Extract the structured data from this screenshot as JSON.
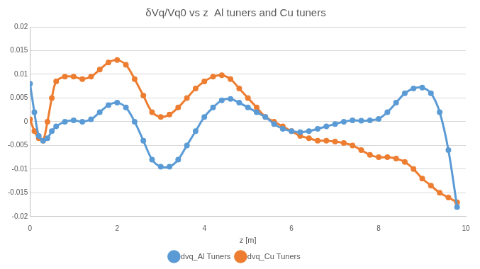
{
  "chart_data": {
    "type": "line",
    "title": "δVq/Vq0 vs z  Al tuners and Cu tuners",
    "x_label": "z [m]",
    "xlim": [
      0,
      10
    ],
    "xticks": [
      0,
      2,
      4,
      6,
      8,
      10
    ],
    "ylim": [
      -0.02,
      0.02
    ],
    "yticks": [
      -0.02,
      -0.015,
      -0.01,
      -0.005,
      0,
      0.005,
      0.01,
      0.015,
      0.02
    ],
    "grid": true,
    "legend": "bottom",
    "x": [
      0,
      0.1,
      0.2,
      0.3,
      0.4,
      0.5,
      0.6,
      0.8,
      1.0,
      1.2,
      1.4,
      1.6,
      1.8,
      2.0,
      2.2,
      2.4,
      2.6,
      2.8,
      3.0,
      3.2,
      3.4,
      3.6,
      3.8,
      4.0,
      4.2,
      4.4,
      4.6,
      4.8,
      5.0,
      5.2,
      5.4,
      5.6,
      5.8,
      6.0,
      6.2,
      6.4,
      6.6,
      6.8,
      7.0,
      7.2,
      7.4,
      7.6,
      7.8,
      8.0,
      8.2,
      8.4,
      8.6,
      8.8,
      9.0,
      9.2,
      9.4,
      9.6,
      9.8
    ],
    "series": [
      {
        "name": "dvq_Al Tuners",
        "color": "#5b9bd5",
        "marker": "circle",
        "line_style": "solid",
        "values": [
          0.008,
          0.002,
          -0.003,
          -0.004,
          -0.0035,
          -0.002,
          -0.001,
          0.0,
          0.0003,
          0.0,
          0.0005,
          0.002,
          0.0035,
          0.004,
          0.003,
          0.0,
          -0.004,
          -0.008,
          -0.0095,
          -0.0095,
          -0.008,
          -0.005,
          -0.002,
          0.001,
          0.003,
          0.0045,
          0.0048,
          0.004,
          0.003,
          0.002,
          0.001,
          -0.0005,
          -0.0015,
          -0.002,
          -0.0022,
          -0.002,
          -0.0015,
          -0.001,
          -0.0005,
          0.0,
          0.0003,
          0.0002,
          0.0003,
          0.0006,
          0.002,
          0.004,
          0.006,
          0.007,
          0.0072,
          0.006,
          0.002,
          -0.006,
          -0.018
        ]
      },
      {
        "name": "dvq_Cu Tuners",
        "color": "#ed7d31",
        "marker": "circle",
        "line_style": "solid",
        "values": [
          0.0005,
          -0.002,
          -0.0035,
          -0.004,
          0.0,
          0.005,
          0.0085,
          0.0095,
          0.0095,
          0.009,
          0.0095,
          0.011,
          0.0125,
          0.013,
          0.012,
          0.009,
          0.0055,
          0.002,
          0.001,
          0.0015,
          0.003,
          0.005,
          0.007,
          0.0085,
          0.0095,
          0.0098,
          0.009,
          0.007,
          0.005,
          0.003,
          0.001,
          0.0,
          -0.001,
          -0.002,
          -0.003,
          -0.0035,
          -0.004,
          -0.004,
          -0.0042,
          -0.0045,
          -0.005,
          -0.006,
          -0.007,
          -0.0075,
          -0.0075,
          -0.0078,
          -0.0085,
          -0.01,
          -0.012,
          -0.0135,
          -0.015,
          -0.016,
          -0.017
        ]
      }
    ]
  }
}
